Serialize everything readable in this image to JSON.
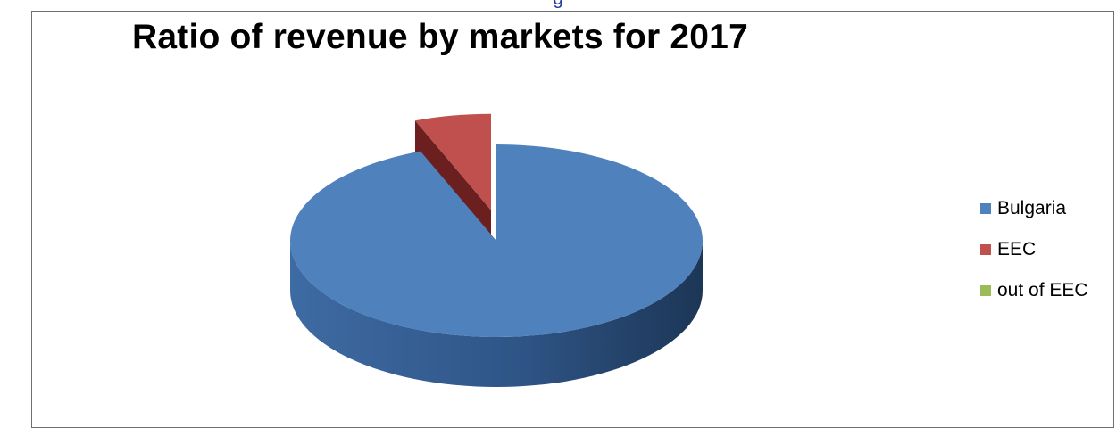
{
  "header": {
    "partial_text": "g"
  },
  "chart_data": {
    "type": "pie",
    "style": "3d-exploded",
    "title": "Ratio of revenue by markets for 2017",
    "legend_position": "right",
    "slices": [
      {
        "label": "Bulgaria",
        "value": 94,
        "color": "#4f81bd"
      },
      {
        "label": "EEC",
        "value": 6,
        "color": "#c0504d"
      },
      {
        "label": "out of EEC",
        "value": 0,
        "color": "#9bbb59"
      }
    ]
  }
}
